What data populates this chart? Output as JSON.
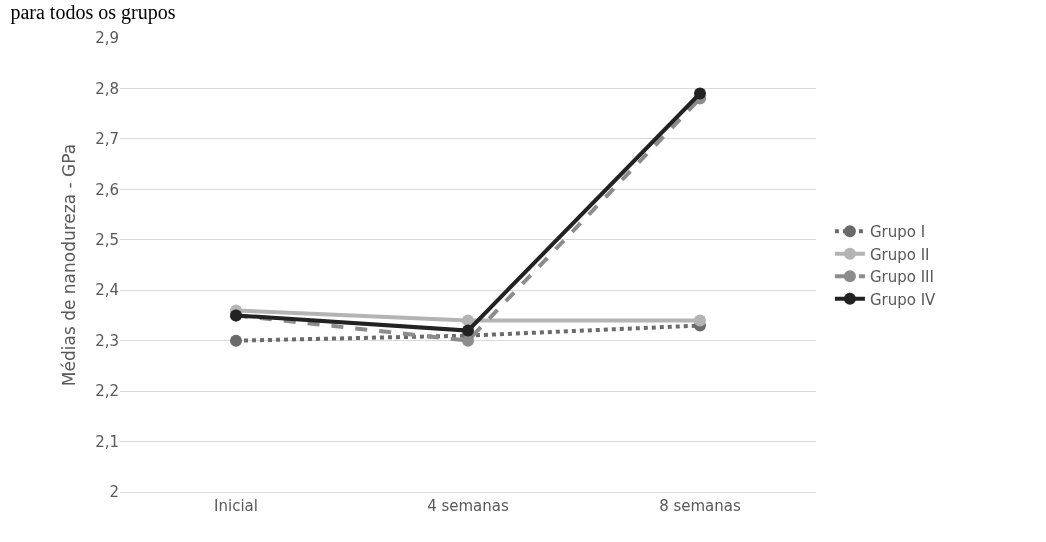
{
  "chart_data": {
    "type": "line",
    "title": "para todos os grupos",
    "ylabel": "Médias de nanodureza - GPa",
    "categories": [
      "Inicial",
      "4 semanas",
      "8 semanas"
    ],
    "series": [
      {
        "name": "Grupo I",
        "color": "#6a6a6a",
        "values": [
          2.3,
          2.31,
          2.33
        ],
        "line_style": "dotted"
      },
      {
        "name": "Grupo II",
        "color": "#b4b4b4",
        "values": [
          2.36,
          2.34,
          2.34
        ],
        "line_style": "solid"
      },
      {
        "name": "Grupo III",
        "color": "#8c8c8c",
        "values": [
          2.35,
          2.3,
          2.78
        ],
        "line_style": "dashed"
      },
      {
        "name": "Grupo IV",
        "color": "#222222",
        "values": [
          2.35,
          2.32,
          2.79
        ],
        "line_style": "solid"
      }
    ],
    "ylim": [
      2,
      2.9
    ],
    "yticks": [
      2,
      {
        "value": 2.1,
        "label": "2,1"
      },
      {
        "value": 2.2,
        "label": "2,2"
      },
      {
        "value": 2.3,
        "label": "2,3"
      },
      {
        "value": 2.4,
        "label": "2,4"
      },
      {
        "value": 2.5,
        "label": "2,5"
      },
      {
        "value": 2.6,
        "label": "2,6"
      },
      {
        "value": 2.7,
        "label": "2,7"
      },
      {
        "value": 2.8,
        "label": "2,8"
      },
      {
        "value": 2.9,
        "label": "2,9"
      }
    ],
    "grid": "y",
    "legend": "right",
    "marker": "circle"
  }
}
